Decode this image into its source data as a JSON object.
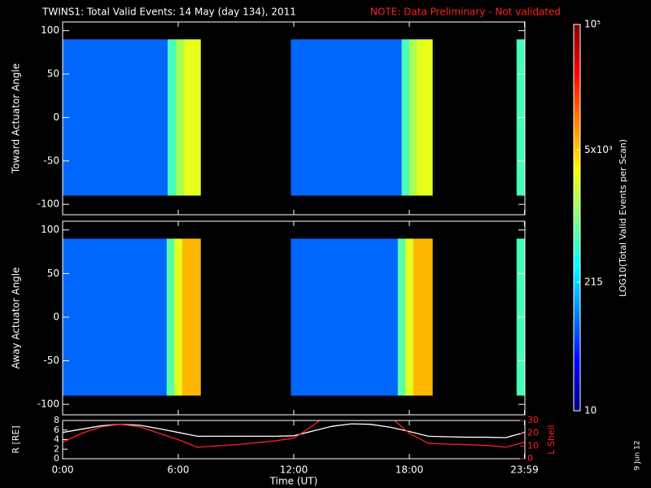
{
  "chart_data": [
    {
      "type": "heatmap",
      "title": "TWINS1: Total Valid Events: 14 May (day 134), 2011",
      "note": "NOTE: Data Preliminary - Not validated",
      "ylabel": "Toward Actuator Angle",
      "ylim": [
        -112,
        110
      ],
      "yticks": [
        -100,
        -50,
        0,
        50,
        100
      ],
      "y_range": [
        -90,
        90
      ],
      "x_edges": [
        0,
        5.45,
        5.9,
        6.3,
        7.16,
        11.85,
        17.6,
        18.0,
        18.4,
        19.2,
        23.57,
        23.98
      ],
      "z": [
        80,
        600,
        1500,
        2500,
        null,
        80,
        600,
        1500,
        2500,
        null,
        600
      ],
      "zlabel": "LOG10(Total Valid Events per Scan)",
      "zlim": [
        10,
        100000
      ],
      "log_z": true,
      "zticks": [
        10,
        215,
        {
          "value": 5000,
          "label": "5x10³"
        },
        {
          "value": 100000,
          "label": "10⁵"
        }
      ],
      "colormap": "jet"
    },
    {
      "type": "heatmap",
      "ylabel": "Away Actuator Angle",
      "ylim": [
        -112,
        110
      ],
      "yticks": [
        -100,
        -50,
        0,
        50,
        100
      ],
      "y_range": [
        -90,
        90
      ],
      "x_edges": [
        0,
        5.4,
        5.8,
        6.2,
        7.16,
        11.85,
        17.4,
        17.8,
        18.2,
        19.2,
        23.57,
        23.98
      ],
      "z": [
        80,
        700,
        2500,
        6000,
        null,
        80,
        700,
        2500,
        6000,
        null,
        600
      ]
    },
    {
      "type": "line",
      "xlabel": "Time (UT)",
      "ylabel": "R [RE]",
      "y2label": "L Shell",
      "date": "9 Jun 12",
      "xlim": [
        0,
        24
      ],
      "xticks": [
        {
          "value": 0,
          "label": "0:00"
        },
        {
          "value": 6,
          "label": "6:00"
        },
        {
          "value": 12,
          "label": "12:00"
        },
        {
          "value": 18,
          "label": "18:00"
        },
        {
          "value": 23.98,
          "label": "23:59"
        }
      ],
      "ylim": [
        0,
        8
      ],
      "yticks": [
        0,
        2,
        4,
        6,
        8
      ],
      "y2lim": [
        0,
        30
      ],
      "y2ticks": [
        0,
        10,
        20,
        30
      ],
      "x": [
        0,
        1,
        2,
        3,
        4,
        5,
        6,
        7,
        8,
        9,
        10,
        11,
        12,
        13,
        14,
        15,
        16,
        17,
        18,
        19,
        20,
        21,
        22,
        23,
        23.98
      ],
      "series": [
        {
          "name": "R",
          "color": "#ffffff",
          "values": [
            5.5,
            6.2,
            6.9,
            7.2,
            7.0,
            6.3,
            5.5,
            4.7,
            4.7,
            4.7,
            4.7,
            4.7,
            4.8,
            5.8,
            6.8,
            7.3,
            7.2,
            6.6,
            5.7,
            4.7,
            4.6,
            4.5,
            4.5,
            4.4,
            5.5
          ]
        },
        {
          "name": "L Shell",
          "color": "#ff2020",
          "axis": "y2",
          "values": [
            13,
            20,
            25,
            27,
            25,
            20,
            15,
            9,
            10,
            11,
            12.5,
            14,
            16,
            26,
            38,
            null,
            null,
            33,
            20,
            12,
            11.5,
            11,
            10.5,
            9,
            13
          ]
        }
      ]
    }
  ]
}
